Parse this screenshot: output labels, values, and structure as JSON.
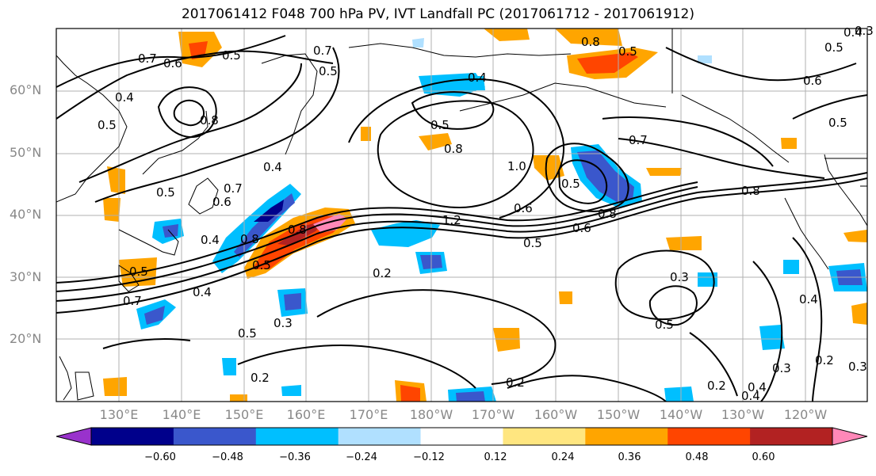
{
  "title": "2017061412 F048 700 hPa PV, IVT Landfall PC (2017061712 - 2017061912)",
  "lat_labels": [
    "60°N",
    "50°N",
    "40°N",
    "30°N",
    "20°N"
  ],
  "lon_labels": [
    "130°E",
    "140°E",
    "150°E",
    "160°E",
    "170°E",
    "180°W",
    "170°W",
    "160°W",
    "150°W",
    "140°W",
    "130°W",
    "120°W"
  ],
  "contour_labels": [
    "0.7",
    "0.6",
    "0.5",
    "0.7",
    "0.5",
    "0.8",
    "0.5",
    "0.4",
    "0.4",
    "0.6",
    "0.5",
    "0.4",
    "0.8",
    "0.5",
    "0.8",
    "0.7",
    "0.5",
    "0.5",
    "0.4",
    "1.0",
    "0.8",
    "0.5",
    "0.8",
    "0.4",
    "0.5",
    "0.6",
    "0.7",
    "0.5",
    "0.6",
    "0.8",
    "1.2",
    "0.6",
    "0.5",
    "0.8",
    "0.4",
    "0.5",
    "0.5",
    "0.4",
    "0.3",
    "0.4",
    "0.7",
    "0.2",
    "0.3",
    "0.3",
    "0.5",
    "0.2",
    "0.2",
    "0.2",
    "0.2",
    "0.4",
    "0.3",
    "0.3"
  ],
  "colorbar": {
    "colors": [
      "#9932CC",
      "#00008B",
      "#3A57CC",
      "#00BFFF",
      "#B0E0FF",
      "#FFFFFF",
      "#FFE680",
      "#FFA500",
      "#FF4500",
      "#B22222",
      "#FF88B8"
    ],
    "tick_labels": [
      "−0.60",
      "−0.48",
      "−0.36",
      "−0.24",
      "−0.12",
      "0.12",
      "0.24",
      "0.36",
      "0.48",
      "0.60"
    ]
  }
}
